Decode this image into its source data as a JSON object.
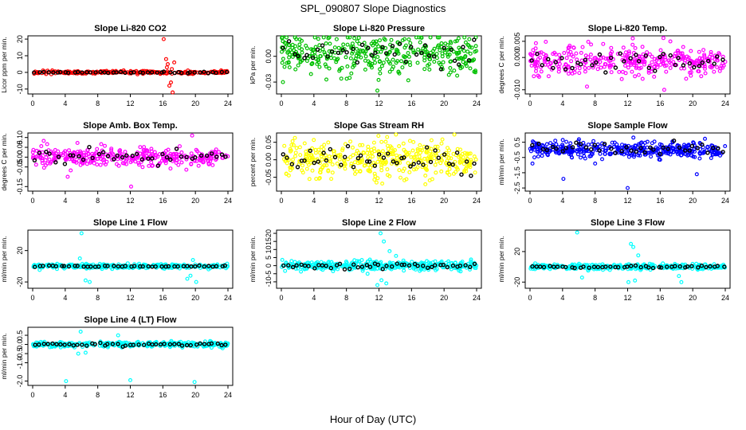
{
  "figure": {
    "title": "SPL_090807  Slope Diagnostics",
    "xlabel": "Hour of Day (UTC)"
  },
  "chart_data": [
    {
      "type": "scatter",
      "title": "Slope Li-820 CO2",
      "ylabel": "Licor ppm per min.",
      "xlim": [
        0,
        24
      ],
      "xticks": [
        "0",
        "4",
        "8",
        "12",
        "16",
        "20",
        "24"
      ],
      "ylim": [
        -12,
        21
      ],
      "yticks": [
        {
          "v": -10,
          "label": "-10"
        },
        {
          "v": 0,
          "label": "0"
        },
        {
          "v": 10,
          "label": "10"
        },
        {
          "v": 20,
          "label": "20"
        }
      ],
      "color": "#ff0000",
      "base": 0,
      "spread": 0.8,
      "n": 260,
      "outliers": [
        [
          16.1,
          20
        ],
        [
          16.4,
          8
        ],
        [
          16.6,
          5
        ],
        [
          16.8,
          -8
        ],
        [
          17.2,
          -12
        ],
        [
          17.0,
          -6
        ],
        [
          16.5,
          3
        ],
        [
          17.4,
          6
        ],
        [
          17.1,
          2
        ]
      ],
      "black_base": 0,
      "black_spread": 0.4,
      "black_n": 45
    },
    {
      "type": "scatter",
      "title": "Slope Li-820 Pressure",
      "ylabel": "kPa per min.",
      "xlim": [
        0,
        24
      ],
      "xticks": [
        "0",
        "4",
        "8",
        "12",
        "16",
        "20",
        "24"
      ],
      "ylim": [
        -0.042,
        0.022
      ],
      "yticks": [
        {
          "v": -0.03,
          "label": "-0.03"
        },
        {
          "v": 0,
          "label": "0.00"
        }
      ],
      "color": "#00c000",
      "base": 0.002,
      "spread": 0.02,
      "n": 360,
      "outliers": [
        [
          0.2,
          -0.03
        ],
        [
          2.5,
          0.018
        ],
        [
          6.8,
          0.02
        ],
        [
          11.8,
          -0.04
        ],
        [
          15.6,
          -0.028
        ],
        [
          20.8,
          0.017
        ],
        [
          23.7,
          -0.018
        ]
      ],
      "black_base": 0.004,
      "black_spread": 0.014,
      "black_n": 40
    },
    {
      "type": "scatter",
      "title": "Slope Li-820 Temp.",
      "ylabel": "degrees C per min.",
      "xlim": [
        0,
        24
      ],
      "xticks": [
        "0",
        "4",
        "8",
        "12",
        "16",
        "20",
        "24"
      ],
      "ylim": [
        -0.0108,
        0.0062
      ],
      "yticks": [
        {
          "v": -0.01,
          "label": "-0.010"
        },
        {
          "v": 0,
          "label": "0.000"
        },
        {
          "v": 0.005,
          "label": "0.005"
        }
      ],
      "color": "#ff00ff",
      "base": -0.001,
      "spread": 0.004,
      "n": 340,
      "outliers": [
        [
          16.4,
          0.006
        ],
        [
          16.5,
          -0.01
        ],
        [
          7.0,
          -0.009
        ],
        [
          7.5,
          0.004
        ]
      ],
      "black_base": -0.001,
      "black_spread": 0.0032,
      "black_n": 40
    },
    {
      "type": "scatter",
      "title": "Slope Amb. Box Temp.",
      "ylabel": "degrees C per min.",
      "xlim": [
        0,
        24
      ],
      "xticks": [
        "0",
        "4",
        "8",
        "12",
        "16",
        "20",
        "24"
      ],
      "ylim": [
        -0.165,
        0.115
      ],
      "yticks": [
        {
          "v": -0.15,
          "label": "-0.15"
        },
        {
          "v": -0.05,
          "label": "-0.05"
        },
        {
          "v": 0,
          "label": "0.00"
        },
        {
          "v": 0.05,
          "label": "0.05"
        },
        {
          "v": 0.1,
          "label": "0.10"
        }
      ],
      "color": "#ff00ff",
      "base": 0,
      "spread": 0.045,
      "n": 340,
      "outliers": [
        [
          12.1,
          -0.15
        ],
        [
          19.6,
          0.11
        ],
        [
          4.3,
          -0.1
        ]
      ],
      "black_base": 0.005,
      "black_spread": 0.035,
      "black_n": 40
    },
    {
      "type": "scatter",
      "title": "Slope Gas Stream RH",
      "ylabel": "percent per min.",
      "xlim": [
        0,
        24
      ],
      "xticks": [
        "0",
        "4",
        "8",
        "12",
        "16",
        "20",
        "24"
      ],
      "ylim": [
        -0.085,
        0.072
      ],
      "yticks": [
        {
          "v": -0.05,
          "label": "-0.05"
        },
        {
          "v": 0,
          "label": "0.00"
        },
        {
          "v": 0.05,
          "label": "0.05"
        }
      ],
      "color": "#ffff00",
      "base": 0,
      "spread": 0.045,
      "n": 380,
      "outliers": [
        [
          11.7,
          -0.065
        ],
        [
          12.4,
          -0.068
        ],
        [
          13.0,
          0.065
        ],
        [
          17.7,
          -0.07
        ]
      ],
      "black_base": 0,
      "black_spread": 0.035,
      "black_n": 45
    },
    {
      "type": "scatter",
      "title": "Slope Sample Flow",
      "ylabel": "ml/min per min.",
      "xlim": [
        0,
        24
      ],
      "xticks": [
        "0",
        "4",
        "8",
        "12",
        "16",
        "20",
        "24"
      ],
      "ylim": [
        -2.6,
        1.0
      ],
      "yticks": [
        {
          "v": -2.5,
          "label": "-2.5"
        },
        {
          "v": -1.5,
          "label": "-1.5"
        },
        {
          "v": -0.5,
          "label": "-0.5"
        },
        {
          "v": 0.5,
          "label": "0.5"
        }
      ],
      "color": "#0000ff",
      "base": 0,
      "spread": 0.45,
      "n": 380,
      "outliers": [
        [
          4.1,
          -1.9
        ],
        [
          12.0,
          -2.5
        ],
        [
          0.3,
          -0.9
        ],
        [
          20.5,
          -1.6
        ],
        [
          8.0,
          -0.9
        ]
      ],
      "black_base": 0.1,
      "black_spread": 0.4,
      "black_n": 40
    },
    {
      "type": "scatter",
      "title": "Slope Line 1 Flow",
      "ylabel": "ml/min per min.",
      "xlim": [
        0,
        24
      ],
      "xticks": [
        "0",
        "4",
        "8",
        "12",
        "16",
        "20",
        "24"
      ],
      "ylim": [
        -26,
        44
      ],
      "yticks": [
        {
          "v": -20,
          "label": "-20"
        },
        {
          "v": 20,
          "label": "20"
        }
      ],
      "color": "#00ffff",
      "base": 0,
      "spread": 2.5,
      "n": 360,
      "outliers": [
        [
          6.0,
          42
        ],
        [
          6.5,
          -18
        ],
        [
          7.0,
          -20
        ],
        [
          5.8,
          10
        ],
        [
          19.0,
          -16
        ],
        [
          19.4,
          -12
        ],
        [
          19.7,
          8
        ],
        [
          16.7,
          -2
        ],
        [
          20.1,
          -20
        ]
      ],
      "black_base": 0,
      "black_spread": 0.8,
      "black_n": 45
    },
    {
      "type": "scatter",
      "title": "Slope Line 2 Flow",
      "ylabel": "ml/min per min.",
      "xlim": [
        0,
        24
      ],
      "xticks": [
        "0",
        "4",
        "8",
        "12",
        "16",
        "20",
        "24"
      ],
      "ylim": [
        -13,
        21
      ],
      "yticks": [
        {
          "v": -10,
          "label": "-10"
        },
        {
          "v": -5,
          "label": "-5"
        },
        {
          "v": 0,
          "label": "0"
        },
        {
          "v": 5,
          "label": "5"
        },
        {
          "v": 10,
          "label": "10"
        },
        {
          "v": 15,
          "label": "15"
        },
        {
          "v": 20,
          "label": "20"
        }
      ],
      "color": "#00ffff",
      "base": 0,
      "spread": 2.5,
      "n": 360,
      "outliers": [
        [
          12.2,
          20
        ],
        [
          12.6,
          15
        ],
        [
          11.8,
          -12
        ],
        [
          12.9,
          -11
        ],
        [
          12.3,
          -9
        ],
        [
          13.3,
          9
        ],
        [
          10.6,
          -5
        ],
        [
          14.1,
          6
        ]
      ],
      "black_base": 0,
      "black_spread": 1.8,
      "black_n": 45
    },
    {
      "type": "scatter",
      "title": "Slope Line 3 Flow",
      "ylabel": "ml/min per min.",
      "xlim": [
        0,
        24
      ],
      "xticks": [
        "0",
        "4",
        "8",
        "12",
        "16",
        "20",
        "24"
      ],
      "ylim": [
        -26,
        46
      ],
      "yticks": [
        {
          "v": -20,
          "label": "-20"
        },
        {
          "v": 20,
          "label": "20"
        }
      ],
      "color": "#00ffff",
      "base": 0,
      "spread": 3,
      "n": 360,
      "outliers": [
        [
          5.8,
          45
        ],
        [
          12.4,
          30
        ],
        [
          12.7,
          26
        ],
        [
          12.1,
          -20
        ],
        [
          12.9,
          -18
        ],
        [
          13.3,
          15
        ],
        [
          18.3,
          -12
        ],
        [
          18.6,
          -20
        ],
        [
          6.4,
          -14
        ]
      ],
      "black_base": 0,
      "black_spread": 1.8,
      "black_n": 45
    },
    {
      "type": "scatter",
      "title": "Slope Line 4 (LT) Flow",
      "ylabel": "ml/min per min.",
      "xlim": [
        0,
        24
      ],
      "xticks": [
        "0",
        "4",
        "8",
        "12",
        "16",
        "20",
        "24"
      ],
      "ylim": [
        -2.15,
        0.85
      ],
      "yticks": [
        {
          "v": -2.0,
          "label": "-2.0"
        },
        {
          "v": -1.0,
          "label": "-1.0"
        },
        {
          "v": -0.5,
          "label": "-0.5"
        },
        {
          "v": 0,
          "label": "0.0"
        },
        {
          "v": 0.5,
          "label": "0.5"
        }
      ],
      "color": "#00ffff",
      "base": 0,
      "spread": 0.13,
      "n": 360,
      "outliers": [
        [
          4.1,
          -2.0
        ],
        [
          12.0,
          -1.95
        ],
        [
          19.9,
          -2.05
        ],
        [
          5.9,
          0.7
        ],
        [
          10.5,
          0.5
        ],
        [
          5.6,
          -0.5
        ],
        [
          6.5,
          -0.45
        ]
      ],
      "black_base": 0,
      "black_spread": 0.09,
      "black_n": 45
    }
  ]
}
